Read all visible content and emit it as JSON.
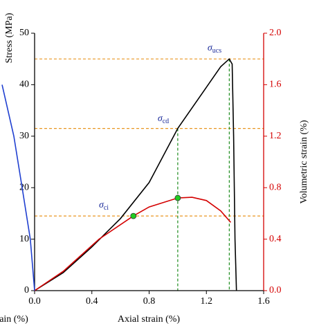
{
  "chart_data": {
    "type": "line",
    "y_label": "Stress (MPa)",
    "y2_label": "Volumetric strain (%)",
    "x_label": "Axial strain (%)",
    "cropped_x_label": "ain (%)",
    "xlim": [
      0,
      1.6
    ],
    "xticks": [
      {
        "value": 0,
        "label": "0.0"
      },
      {
        "value": 0.4,
        "label": "0.4"
      },
      {
        "value": 0.8,
        "label": "0.8"
      },
      {
        "value": 1.2,
        "label": "1.2"
      },
      {
        "value": 1.6,
        "label": "1.6"
      }
    ],
    "ylim": [
      0,
      50
    ],
    "yticks": [
      0,
      10,
      20,
      30,
      40,
      50
    ],
    "y2lim": [
      0,
      2
    ],
    "y2ticks": [
      {
        "value": 0,
        "label": "0.0"
      },
      {
        "value": 0.4,
        "label": "0.4"
      },
      {
        "value": 0.8,
        "label": "0.8"
      },
      {
        "value": 1.2,
        "label": "1.2"
      },
      {
        "value": 1.6,
        "label": "1.6"
      },
      {
        "value": 2,
        "label": "2.0"
      }
    ],
    "y2_color": "#d40000",
    "series": [
      {
        "color": "#000000",
        "x": [
          0,
          0.2,
          0.4,
          0.6,
          0.8,
          1.0,
          1.2,
          1.3,
          1.36,
          1.38,
          1.39,
          1.4,
          1.41
        ],
        "y": [
          0,
          3.5,
          8.5,
          14,
          21,
          31.5,
          39.5,
          43.5,
          45,
          44,
          30,
          10,
          0
        ]
      },
      {
        "color": "#d40000",
        "axis": "y2",
        "x": [
          0,
          0.2,
          0.45,
          0.69,
          0.8,
          1.0,
          1.1,
          1.2,
          1.3,
          1.37
        ],
        "y": [
          0,
          0.15,
          0.4,
          0.58,
          0.65,
          0.72,
          0.725,
          0.7,
          0.62,
          0.53
        ]
      },
      {
        "color": "#1f3fd0",
        "x": [
          0,
          -0.03,
          -0.087,
          -0.145,
          -0.227
        ],
        "y": [
          0,
          10,
          20,
          30,
          40
        ]
      }
    ],
    "points": {
      "color": "#22cc22",
      "x": [
        0.69,
        1.0
      ],
      "y": [
        0.58,
        0.72
      ]
    },
    "reference_lines": [
      {
        "symbol": "σ",
        "subscript": "ci",
        "stress": 14.5
      },
      {
        "symbol": "σ",
        "subscript": "cd",
        "stress": 31.5,
        "strain": 1.0
      },
      {
        "symbol": "σ",
        "subscript": "ucs",
        "stress": 45,
        "strain": 1.36
      }
    ],
    "hline_color": "#e89520",
    "vline_color": "#1a8a1a",
    "annotation_color": "#1a2a9a"
  }
}
